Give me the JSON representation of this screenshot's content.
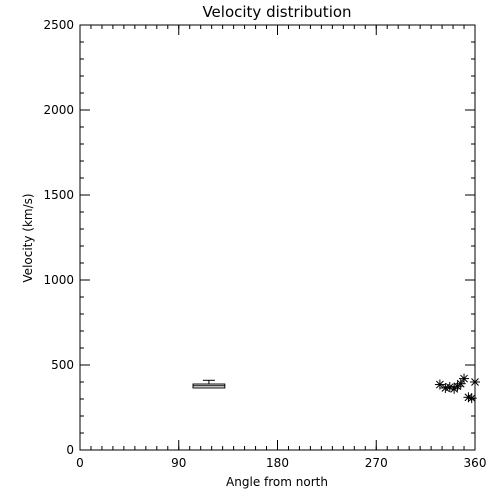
{
  "chart_data": {
    "type": "scatter",
    "title": "Velocity distribution",
    "xlabel": "Angle from north",
    "ylabel": "Velocity (km/s)",
    "xlim": [
      0,
      360
    ],
    "ylim": [
      0,
      2500
    ],
    "xticks": [
      0,
      90,
      180,
      270,
      360
    ],
    "yticks": [
      0,
      500,
      1000,
      1500,
      2000,
      2500
    ],
    "x_minor_step": 10,
    "y_minor_step": 100,
    "grid": false,
    "marker": "asterisk",
    "boxplot": {
      "x_from": 103,
      "x_to": 132,
      "q1": 365,
      "median": 378,
      "q3": 388,
      "whisker_high": 410
    },
    "points": [
      {
        "x": 328,
        "y": 385
      },
      {
        "x": 333,
        "y": 365
      },
      {
        "x": 337,
        "y": 370
      },
      {
        "x": 341,
        "y": 360
      },
      {
        "x": 344,
        "y": 375
      },
      {
        "x": 347,
        "y": 390
      },
      {
        "x": 350,
        "y": 420
      },
      {
        "x": 354,
        "y": 310
      },
      {
        "x": 357,
        "y": 305
      },
      {
        "x": 360,
        "y": 400
      }
    ]
  }
}
